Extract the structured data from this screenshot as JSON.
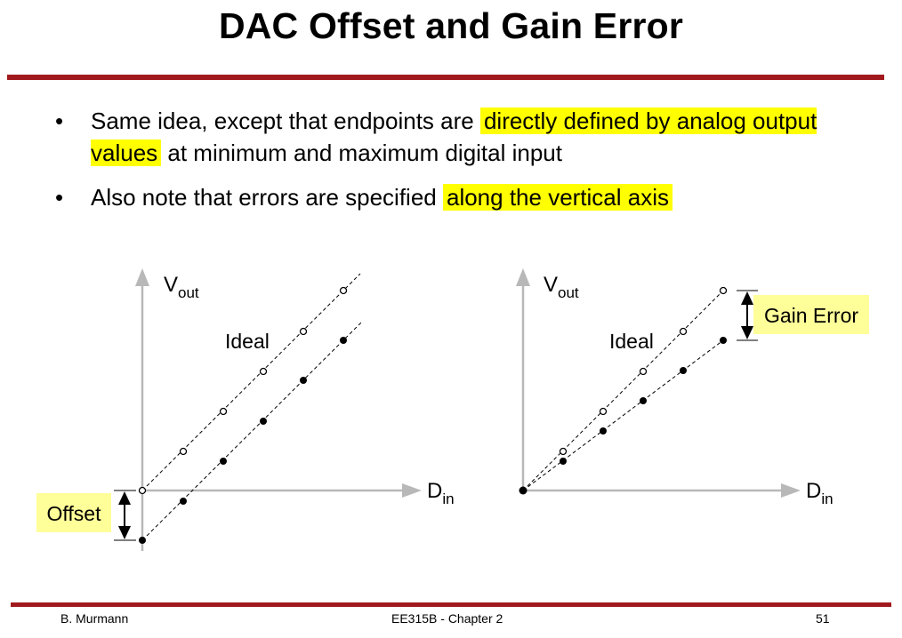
{
  "slide": {
    "title": "DAC Offset and Gain Error",
    "bullets": [
      {
        "before": "Same idea, except that endpoints are ",
        "highlight": "directly defined by analog output values",
        "after": " at minimum and maximum digital input"
      },
      {
        "before": "Also note that errors are specified ",
        "highlight": "along the vertical axis",
        "after": ""
      }
    ],
    "bullet_symbol": "•",
    "highlight_color": "#ffff00",
    "callout_color": "#ffff99",
    "rule_color": "#a0191d"
  },
  "diagram_offset": {
    "y_axis_main": "V",
    "y_axis_sub": "out",
    "x_axis_main": "D",
    "x_axis_sub": "in",
    "ideal_label": "Ideal",
    "error_label": "Offset"
  },
  "diagram_gain": {
    "y_axis_main": "V",
    "y_axis_sub": "out",
    "x_axis_main": "D",
    "x_axis_sub": "in",
    "ideal_label": "Ideal",
    "error_label": "Gain Error"
  },
  "footer": {
    "author": "B. Murmann",
    "course": "EE315B - Chapter 2",
    "page": "51"
  }
}
